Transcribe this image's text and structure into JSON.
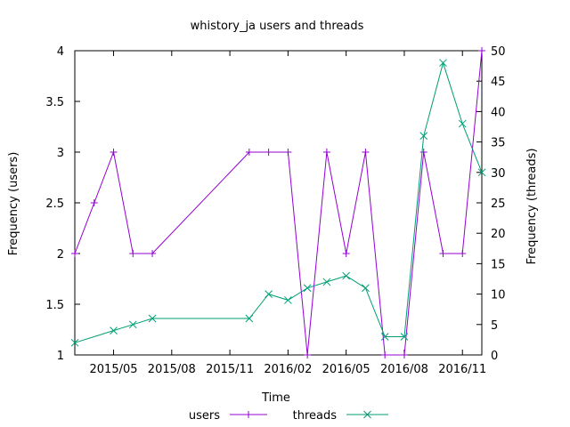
{
  "chart_data": {
    "type": "line",
    "title": "whistory_ja users and threads",
    "xlabel": "Time",
    "ylabel": "Frequency (users)",
    "y2label": "Frequency (threads)",
    "x_ticks": [
      "2015/05",
      "2015/08",
      "2015/11",
      "2016/02",
      "2016/05",
      "2016/08",
      "2016/11"
    ],
    "x_tick_dates": [
      "2015-05-01",
      "2015-08-01",
      "2015-11-01",
      "2016-02-01",
      "2016-05-01",
      "2016-08-01",
      "2016-11-01"
    ],
    "xlim": [
      "2015-03-01",
      "2016-12-01"
    ],
    "ylim": [
      1,
      4
    ],
    "y_ticks": [
      1,
      1.5,
      2,
      2.5,
      3,
      3.5,
      4
    ],
    "y2lim": [
      0,
      50
    ],
    "y2_ticks": [
      0,
      5,
      10,
      15,
      20,
      25,
      30,
      35,
      40,
      45,
      50
    ],
    "grid": false,
    "legend_position": "bottom-center",
    "series": [
      {
        "name": "users",
        "axis": "y",
        "color": "#9400d3",
        "marker": "plus",
        "x": [
          "2015-03-01",
          "2015-04-01",
          "2015-05-01",
          "2015-06-01",
          "2015-07-01",
          "2015-12-01",
          "2016-01-01",
          "2016-02-01",
          "2016-03-01",
          "2016-04-01",
          "2016-05-01",
          "2016-06-01",
          "2016-07-01",
          "2016-08-01",
          "2016-09-01",
          "2016-10-01",
          "2016-11-01",
          "2016-12-01"
        ],
        "values": [
          2,
          2.5,
          3,
          2,
          2,
          3,
          3,
          3,
          1,
          3,
          2,
          3,
          1,
          1,
          3,
          2,
          2,
          4
        ]
      },
      {
        "name": "threads",
        "axis": "y2",
        "color": "#009e73",
        "marker": "cross",
        "x": [
          "2015-03-01",
          "2015-05-01",
          "2015-06-01",
          "2015-07-01",
          "2015-12-01",
          "2016-01-01",
          "2016-02-01",
          "2016-03-01",
          "2016-04-01",
          "2016-05-01",
          "2016-06-01",
          "2016-07-01",
          "2016-08-01",
          "2016-09-01",
          "2016-10-01",
          "2016-11-01",
          "2016-12-01"
        ],
        "values": [
          2,
          4,
          5,
          6,
          6,
          10,
          9,
          11,
          12,
          13,
          11,
          3,
          3,
          36,
          48,
          38,
          30
        ]
      }
    ]
  }
}
